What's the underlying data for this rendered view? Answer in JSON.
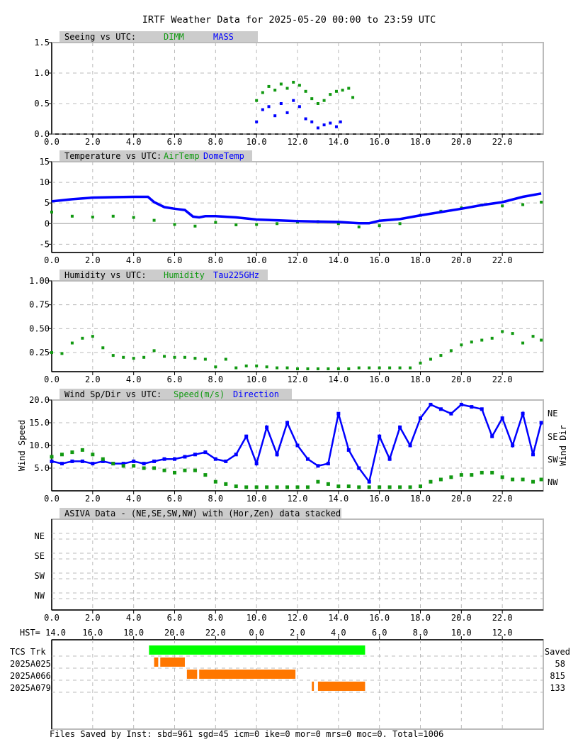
{
  "title": "IRTF Weather Data for 2025-05-20 00:00 to 23:59 UTC",
  "colors": {
    "green": "#119911",
    "blue": "#0000ff",
    "orange": "#ff7700",
    "bright_green": "#00ff00",
    "header_bg": "#cccccc",
    "grid": "#bbbbbb"
  },
  "x_ticks": [
    "0.0",
    "2.0",
    "4.0",
    "6.0",
    "8.0",
    "10.0",
    "12.0",
    "14.0",
    "16.0",
    "18.0",
    "20.0",
    "22.0"
  ],
  "hst_ticks": [
    "HST= 14.0",
    "16.0",
    "18.0",
    "20.0",
    "22.0",
    "0.0",
    "2.0",
    "4.0",
    "6.0",
    "8.0",
    "10.0",
    "12.0"
  ],
  "footer": "Files Saved by Inst: sbd=961 sgd=45 icm=0 ike=0 mor=0 mrs=0 moc=0. Total=1006",
  "chart_data": [
    {
      "type": "scatter",
      "panel_label": "Seeing vs UTC:",
      "xlabel": "",
      "ylabel": "",
      "xlim": [
        0,
        24
      ],
      "ylim": [
        0,
        1.5
      ],
      "y_ticks": [
        "1.5",
        "1.0",
        "0.5",
        "0.0"
      ],
      "series": [
        {
          "name": "DIMM",
          "color": "green",
          "x": [
            10.0,
            10.3,
            10.6,
            10.9,
            11.2,
            11.5,
            11.8,
            12.1,
            12.4,
            12.7,
            13.0,
            13.3,
            13.6,
            13.9,
            14.2,
            14.5,
            14.7
          ],
          "y": [
            0.55,
            0.68,
            0.78,
            0.72,
            0.82,
            0.75,
            0.85,
            0.8,
            0.7,
            0.58,
            0.5,
            0.55,
            0.65,
            0.7,
            0.72,
            0.75,
            0.6
          ]
        },
        {
          "name": "MASS",
          "color": "blue",
          "x": [
            10.0,
            10.3,
            10.6,
            10.9,
            11.2,
            11.5,
            11.8,
            12.1,
            12.4,
            12.7,
            13.0,
            13.3,
            13.6,
            13.9,
            14.1
          ],
          "y": [
            0.2,
            0.4,
            0.45,
            0.3,
            0.5,
            0.35,
            0.55,
            0.45,
            0.25,
            0.2,
            0.1,
            0.15,
            0.18,
            0.12,
            0.2
          ]
        }
      ]
    },
    {
      "type": "line",
      "panel_label": "Temperature vs UTC:",
      "xlabel": "",
      "ylabel": "",
      "xlim": [
        0,
        24
      ],
      "ylim": [
        -7,
        15
      ],
      "y_ticks": [
        "15",
        "10",
        "5",
        "0",
        "-5"
      ],
      "series": [
        {
          "name": "AirTemp",
          "color": "green",
          "x": [
            0,
            1,
            2,
            3,
            4,
            5,
            6,
            7,
            8,
            9,
            10,
            11,
            12,
            13,
            14,
            15,
            16,
            17,
            18,
            19,
            20,
            21,
            22,
            23,
            23.9
          ],
          "y": [
            2.8,
            1.8,
            1.6,
            1.8,
            1.5,
            0.8,
            -0.2,
            -0.6,
            0.3,
            -0.3,
            -0.2,
            0.0,
            0.4,
            0.5,
            0.0,
            -0.8,
            -0.5,
            0.0,
            2.0,
            3.0,
            3.8,
            4.5,
            4.3,
            4.6,
            5.2
          ]
        },
        {
          "name": "DomeTemp",
          "color": "blue",
          "x": [
            0,
            1,
            2,
            3,
            4,
            4.7,
            5,
            5.5,
            6,
            6.5,
            6.9,
            7.2,
            7.5,
            8,
            9,
            10,
            11,
            12,
            13,
            14,
            15,
            15.5,
            16,
            17,
            18,
            19,
            20,
            21,
            22,
            23,
            23.9
          ],
          "y": [
            5.4,
            5.9,
            6.3,
            6.4,
            6.5,
            6.5,
            5.2,
            4.0,
            3.6,
            3.3,
            1.7,
            1.5,
            1.8,
            1.8,
            1.5,
            1.0,
            0.8,
            0.6,
            0.5,
            0.4,
            0.1,
            0.1,
            0.7,
            1.1,
            2.0,
            2.8,
            3.6,
            4.5,
            5.2,
            6.5,
            7.3
          ]
        }
      ]
    },
    {
      "type": "scatter",
      "panel_label": "Humidity vs UTC:",
      "xlabel": "",
      "ylabel": "",
      "xlim": [
        0,
        24
      ],
      "ylim": [
        0.05,
        1.0
      ],
      "y_ticks": [
        "1.00",
        "0.75",
        "0.50",
        "0.25"
      ],
      "series": [
        {
          "name": "Humidity",
          "color": "green",
          "x": [
            0,
            0.5,
            1,
            1.5,
            2,
            2.5,
            3,
            3.5,
            4,
            4.5,
            5,
            5.5,
            6,
            6.5,
            7,
            7.5,
            8,
            8.5,
            9,
            9.5,
            10,
            10.5,
            11,
            11.5,
            12,
            12.5,
            13,
            13.5,
            14,
            14.5,
            15,
            15.5,
            16,
            16.5,
            17,
            17.5,
            18,
            18.5,
            19,
            19.5,
            20,
            20.5,
            21,
            21.5,
            22,
            22.5,
            23,
            23.5,
            23.9
          ],
          "y": [
            0.25,
            0.24,
            0.35,
            0.4,
            0.42,
            0.3,
            0.22,
            0.2,
            0.19,
            0.2,
            0.27,
            0.21,
            0.2,
            0.2,
            0.19,
            0.18,
            0.1,
            0.18,
            0.09,
            0.11,
            0.11,
            0.1,
            0.09,
            0.09,
            0.08,
            0.08,
            0.08,
            0.08,
            0.08,
            0.08,
            0.09,
            0.09,
            0.09,
            0.09,
            0.09,
            0.09,
            0.14,
            0.18,
            0.22,
            0.27,
            0.33,
            0.36,
            0.38,
            0.4,
            0.47,
            0.45,
            0.35,
            0.42,
            0.38
          ]
        },
        {
          "name": "Tau225GHz",
          "color": "blue",
          "x": [],
          "y": []
        }
      ]
    },
    {
      "type": "scatter",
      "panel_label": "Wind Sp/Dir vs UTC:",
      "xlabel": "",
      "ylabel": "Wind Speed",
      "ylabel_right": "Wind Dir",
      "xlim": [
        0,
        24
      ],
      "ylim": [
        0,
        20
      ],
      "y_ticks": [
        "20.0",
        "15.0",
        "10.0",
        "5.0"
      ],
      "right_ticks": [
        "NE",
        "SE",
        "SW",
        "NW"
      ],
      "series": [
        {
          "name": "Speed(m/s)",
          "color": "green",
          "x": [
            0,
            0.5,
            1,
            1.5,
            2,
            2.5,
            3,
            3.5,
            4,
            4.5,
            5,
            5.5,
            6,
            6.5,
            7,
            7.5,
            8,
            8.5,
            9,
            9.5,
            10,
            10.5,
            11,
            11.5,
            12,
            12.5,
            13,
            13.5,
            14,
            14.5,
            15,
            15.5,
            16,
            16.5,
            17,
            17.5,
            18,
            18.5,
            19,
            19.5,
            20,
            20.5,
            21,
            21.5,
            22,
            22.5,
            23,
            23.5,
            23.9
          ],
          "y": [
            7.5,
            8.0,
            8.5,
            9.0,
            8.0,
            7.0,
            6.0,
            5.5,
            5.5,
            5.0,
            5.0,
            4.5,
            4.0,
            4.5,
            4.5,
            3.5,
            2.0,
            1.5,
            1.0,
            0.8,
            0.8,
            0.8,
            0.8,
            0.8,
            0.8,
            0.8,
            2.0,
            1.5,
            1.0,
            1.0,
            0.8,
            0.8,
            0.8,
            0.8,
            0.8,
            0.8,
            1.0,
            2.0,
            2.5,
            3.0,
            3.5,
            3.5,
            4.0,
            4.0,
            3.0,
            2.5,
            2.5,
            2.0,
            2.5
          ]
        },
        {
          "name": "Direction",
          "color": "blue",
          "x": [
            0,
            0.5,
            1,
            1.5,
            2,
            2.5,
            3,
            3.5,
            4,
            4.5,
            5,
            5.5,
            6,
            6.5,
            7,
            7.5,
            8,
            8.5,
            9,
            9.5,
            10,
            10.5,
            11,
            11.5,
            12,
            12.5,
            13,
            13.5,
            14,
            14.5,
            15,
            15.5,
            16,
            16.5,
            17,
            17.5,
            18,
            18.5,
            19,
            19.5,
            20,
            20.5,
            21,
            21.5,
            22,
            22.5,
            23,
            23.5,
            23.9
          ],
          "y": [
            6.5,
            6.0,
            6.5,
            6.5,
            6.0,
            6.5,
            6.0,
            6.0,
            6.5,
            6.0,
            6.5,
            7.0,
            7.0,
            7.5,
            8.0,
            8.5,
            7.0,
            6.5,
            8.0,
            12.0,
            6.0,
            14.0,
            8.0,
            15.0,
            10.0,
            7.0,
            5.5,
            6.0,
            17.0,
            9.0,
            5.0,
            2.0,
            12.0,
            7.0,
            14.0,
            10.0,
            16.0,
            19.0,
            18.0,
            17.0,
            19.0,
            18.5,
            18.0,
            12.0,
            16.0,
            10.0,
            17.0,
            8.0,
            15.0
          ]
        }
      ]
    },
    {
      "type": "table",
      "panel_label": "ASIVA Data - (NE,SE,SW,NW) with (Hor,Zen) data stacked",
      "xlim": [
        0,
        24
      ],
      "rows": [
        "NE",
        "SE",
        "SW",
        "NW"
      ]
    },
    {
      "type": "bar",
      "panel_label": "",
      "xlim": [
        0,
        24
      ],
      "right_header": "Saved",
      "rows": [
        {
          "label": "TCS Trk",
          "saved": "",
          "color": "bright_green",
          "segments": [
            [
              4.75,
              15.3
            ]
          ]
        },
        {
          "label": "2025A025",
          "saved": "58",
          "color": "orange",
          "segments": [
            [
              5.0,
              5.2
            ],
            [
              5.3,
              6.5
            ]
          ]
        },
        {
          "label": "2025A066",
          "saved": "815",
          "color": "orange",
          "segments": [
            [
              6.6,
              7.1
            ],
            [
              7.2,
              11.9
            ]
          ]
        },
        {
          "label": "2025A079",
          "saved": "133",
          "color": "orange",
          "segments": [
            [
              12.7,
              12.8
            ],
            [
              13.0,
              15.3
            ]
          ]
        }
      ]
    }
  ]
}
